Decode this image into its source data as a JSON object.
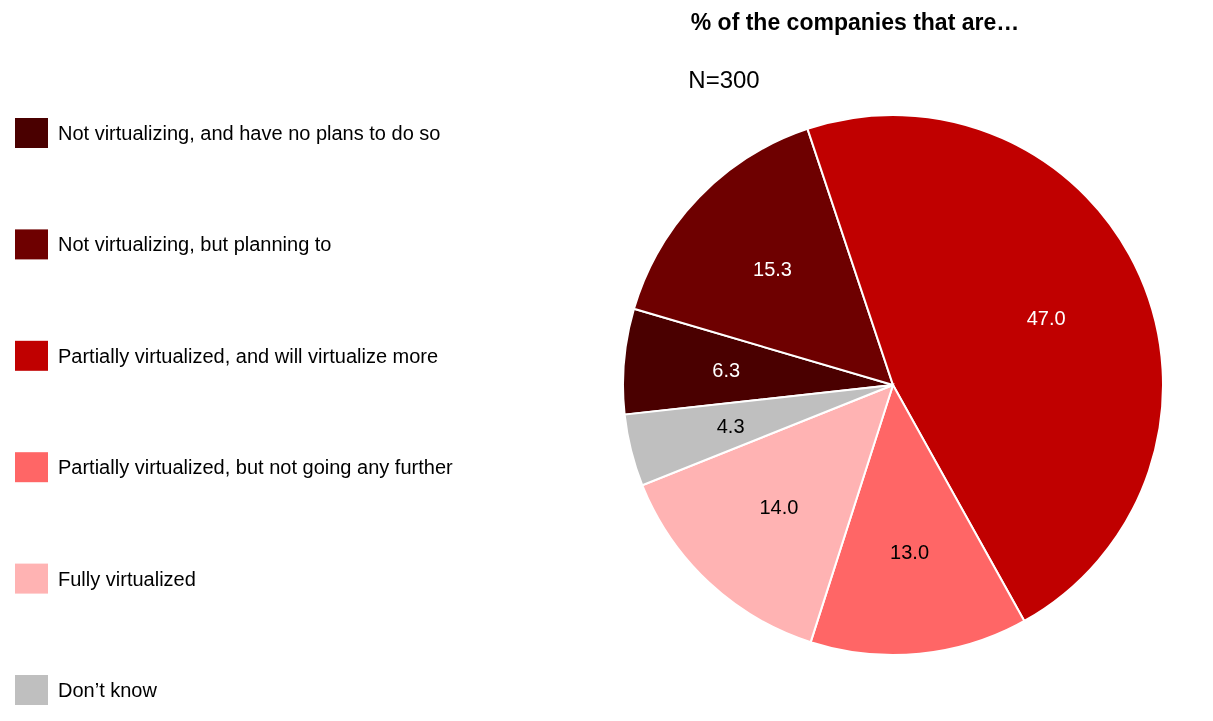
{
  "chart_data": {
    "type": "pie",
    "title": "% of the companies that are…",
    "annotations": [
      "N=300"
    ],
    "categories": [
      "Not virtualizing, and have no plans to do so",
      "Not virtualizing, but planning to",
      "Partially virtualized, and will virtualize more",
      "Partially virtualized, but not going any further",
      "Fully virtualized",
      "Don’t know"
    ],
    "values": [
      6.3,
      15.3,
      47.0,
      13.0,
      14.0,
      4.3
    ],
    "value_labels": [
      "6.3",
      "15.3",
      "47.0",
      "13.0",
      "14.0",
      "4.3"
    ],
    "colors": [
      "#4a0000",
      "#6e0000",
      "#c00000",
      "#ff6666",
      "#ffb3b3",
      "#bfbfbf"
    ],
    "legend": "left"
  }
}
